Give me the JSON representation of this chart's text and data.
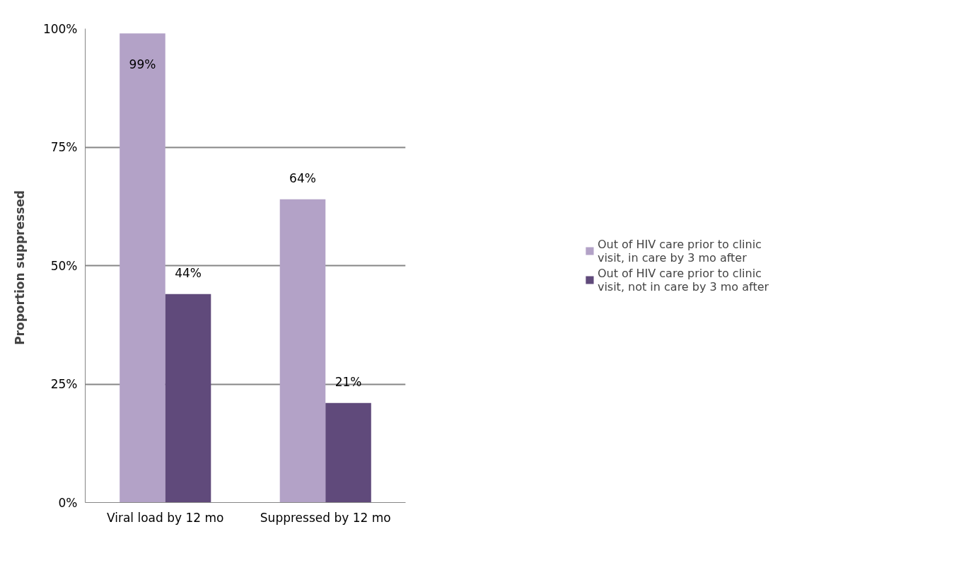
{
  "chart_data": {
    "type": "bar",
    "ylabel": "Proportion  suppressed",
    "categories": [
      "Viral load by 12 mo",
      "Suppressed by 12 mo"
    ],
    "series": [
      {
        "name": "Out of HIV care prior to clinic visit, in care by 3 mo after",
        "color": "#b3a2c7",
        "values": [
          99,
          64
        ],
        "value_labels": [
          "99%",
          "64%"
        ]
      },
      {
        "name": "Out of HIV care prior to clinic visit, not in care by 3 mo after",
        "color": "#604a7b",
        "values": [
          44,
          21
        ],
        "value_labels": [
          "44%",
          "21%"
        ]
      }
    ],
    "ylim": [
      0,
      100
    ],
    "yticks": [
      {
        "value": 0,
        "label": "0%"
      },
      {
        "value": 25,
        "label": "25%"
      },
      {
        "value": 50,
        "label": "50%"
      },
      {
        "value": 75,
        "label": "75%"
      },
      {
        "value": 100,
        "label": "100%"
      }
    ],
    "grid": "y",
    "legend": "right"
  }
}
